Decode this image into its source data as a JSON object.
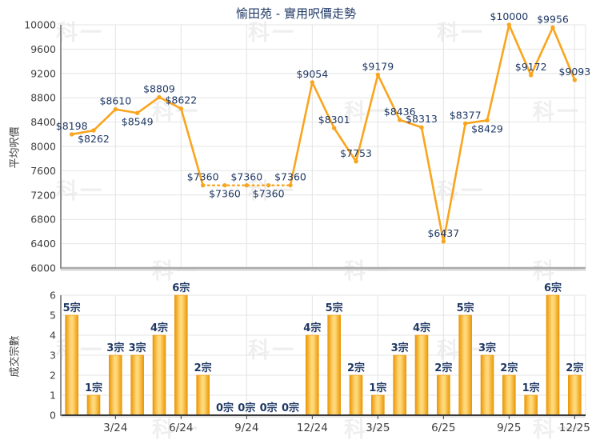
{
  "watermark": {
    "text": "科一"
  },
  "colors": {
    "line": "#F9A51E",
    "bar_edge": "#EB9706",
    "bar_center": "#FFD878",
    "label_navy": "#1F3864",
    "axis_text": "#3F3F3F",
    "grid": "#E4E4E4",
    "axis_gray": "#ABABAB",
    "axis_gray_shadow": "#D8D8D8",
    "axis_left": "#909090",
    "axis_dark": "#3A3A3A",
    "watermark": "#EFEFEF"
  },
  "chart_data": [
    {
      "type": "line",
      "title": "愉田苑 - 實用呎價走勢",
      "ylabel": "平均呎價",
      "ylim": [
        6000,
        10000
      ],
      "ytick_step": 400,
      "grid": true,
      "categories": [
        "1/24",
        "2/24",
        "3/24",
        "4/24",
        "5/24",
        "6/24",
        "7/24",
        "8/24",
        "9/24",
        "10/24",
        "11/24",
        "12/24",
        "1/25",
        "2/25",
        "3/25",
        "4/25",
        "5/25",
        "6/25",
        "7/25",
        "8/25",
        "9/25",
        "10/25",
        "11/25",
        "12/25"
      ],
      "xtick_labels": [
        "3/24",
        "6/24",
        "9/24",
        "12/24",
        "3/25",
        "6/25",
        "9/25",
        "12/25"
      ],
      "values": [
        8198,
        8262,
        8610,
        8549,
        8809,
        8622,
        7360,
        7360,
        7360,
        7360,
        7360,
        9054,
        8301,
        7753,
        9179,
        8436,
        8313,
        6437,
        8377,
        8429,
        10000,
        9172,
        9956,
        9093
      ],
      "point_labels": [
        "$8198",
        "$8262",
        "$8610",
        "$8549",
        "$8809",
        "$8622",
        "$7360",
        "$7360",
        "$7360",
        "$7360",
        "$7360",
        "$9054",
        "$8301",
        "$7753",
        "$9179",
        "$8436",
        "$8313",
        "$6437",
        "$8377",
        "$8429",
        "$10000",
        "$9172",
        "$9956",
        "$9093"
      ],
      "label_positions": [
        "above",
        "below",
        "above",
        "below",
        "above",
        "above",
        "above",
        "below",
        "above",
        "below",
        "above",
        "above",
        "above",
        "above",
        "above",
        "above",
        "above",
        "above",
        "above",
        "below",
        "above",
        "above",
        "above",
        "above"
      ],
      "dotted_segments": [
        [
          6,
          10
        ]
      ]
    },
    {
      "type": "bar",
      "ylabel": "成交宗數",
      "ylim": [
        0,
        6
      ],
      "ytick_step": 1,
      "grid": true,
      "categories": [
        "1/24",
        "2/24",
        "3/24",
        "4/24",
        "5/24",
        "6/24",
        "7/24",
        "8/24",
        "9/24",
        "10/24",
        "11/24",
        "12/24",
        "1/25",
        "2/25",
        "3/25",
        "4/25",
        "5/25",
        "6/25",
        "7/25",
        "8/25",
        "9/25",
        "10/25",
        "11/25",
        "12/25"
      ],
      "xtick_labels": [
        "3/24",
        "6/24",
        "9/24",
        "12/24",
        "3/25",
        "6/25",
        "9/25",
        "12/25"
      ],
      "values": [
        5,
        1,
        3,
        3,
        4,
        6,
        2,
        0,
        0,
        0,
        0,
        4,
        5,
        2,
        1,
        3,
        4,
        2,
        5,
        3,
        2,
        1,
        6,
        2
      ],
      "bar_labels": [
        "5宗",
        "1宗",
        "3宗",
        "3宗",
        "4宗",
        "6宗",
        "2宗",
        "0宗",
        "0宗",
        "0宗",
        "0宗",
        "4宗",
        "5宗",
        "2宗",
        "1宗",
        "3宗",
        "4宗",
        "2宗",
        "5宗",
        "3宗",
        "2宗",
        "1宗",
        "6宗",
        "2宗"
      ]
    }
  ]
}
